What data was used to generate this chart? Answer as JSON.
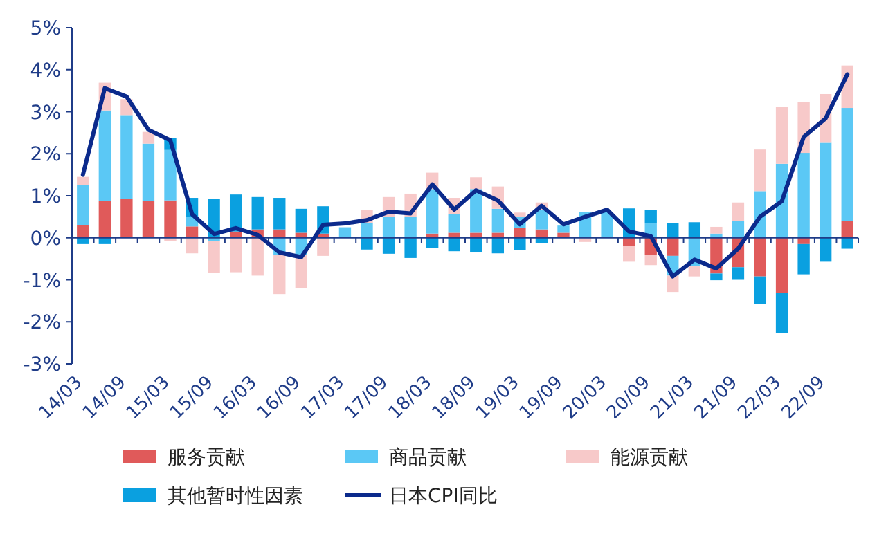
{
  "chart_data": {
    "type": "bar",
    "stacked": true,
    "legend": "bottom",
    "ref_lines": [
      {
        "axis": "y",
        "value": 0,
        "color": "#1f3c88"
      }
    ],
    "categories": [
      "14/03",
      null,
      "14/09",
      null,
      "15/03",
      null,
      "15/09",
      null,
      "16/03",
      null,
      "16/09",
      null,
      "17/03",
      null,
      "17/09",
      null,
      "18/03",
      null,
      "18/09",
      null,
      "19/03",
      null,
      "19/09",
      null,
      "20/03",
      null,
      "20/09",
      null,
      "21/03",
      null,
      "21/09",
      null,
      "22/03",
      null,
      "22/09",
      null
    ],
    "ylim": [
      -3,
      5
    ],
    "yticks": [
      {
        "value": -3,
        "label": "-3%"
      },
      {
        "value": -2,
        "label": "-2%"
      },
      {
        "value": -1,
        "label": "-1%"
      },
      {
        "value": 0,
        "label": "0%"
      },
      {
        "value": 1,
        "label": "1%"
      },
      {
        "value": 2,
        "label": "2%"
      },
      {
        "value": 3,
        "label": "3%"
      },
      {
        "value": 4,
        "label": "4%"
      },
      {
        "value": 5,
        "label": "5%"
      }
    ],
    "series": [
      {
        "name": "服务贡献",
        "color": "#e05a5a",
        "values": [
          0.3,
          0.87,
          0.92,
          0.87,
          0.89,
          0.27,
          0,
          0.15,
          0.2,
          0.2,
          0.12,
          0.1,
          null,
          0,
          0,
          0,
          0.1,
          0.12,
          0.12,
          0.12,
          0.23,
          0.2,
          0.12,
          0,
          0,
          -0.19,
          -0.4,
          -0.43,
          0,
          -0.85,
          -0.7,
          -0.92,
          -1.31,
          -0.15,
          0,
          0.4
        ]
      },
      {
        "name": "商品贡献",
        "color": "#5bc8f5",
        "values": [
          0.95,
          2.16,
          2.0,
          1.37,
          1.2,
          0.22,
          -0.08,
          0,
          null,
          -0.4,
          -0.4,
          0,
          0.25,
          0.35,
          0.5,
          0.5,
          1.06,
          0.44,
          1.04,
          0.57,
          0.27,
          0.47,
          0.17,
          0.62,
          0.62,
          0,
          0.34,
          -0.47,
          -0.68,
          0.1,
          0.4,
          1.11,
          1.76,
          2.02,
          2.26,
          2.69
        ]
      },
      {
        "name": "能源贡献",
        "color": "#f7c9c9",
        "values": [
          0.2,
          0.66,
          0.38,
          0.28,
          -0.07,
          -0.37,
          -0.76,
          -0.82,
          -0.9,
          -0.94,
          -0.8,
          -0.43,
          0,
          0.32,
          0.47,
          0.55,
          0.39,
          0.39,
          0.28,
          0.53,
          0.1,
          0.17,
          0,
          -0.1,
          0,
          -0.38,
          -0.25,
          -0.39,
          -0.24,
          0.16,
          0.44,
          0.99,
          1.36,
          1.21,
          1.16,
          1.01
        ]
      },
      {
        "name": "其他暂时性因素",
        "color": "#0aa0e0",
        "values": [
          -0.15,
          -0.15,
          0,
          0,
          0.28,
          0.46,
          0.93,
          0.88,
          0.77,
          0.75,
          0.57,
          0.65,
          0,
          -0.28,
          -0.38,
          -0.48,
          -0.25,
          -0.32,
          -0.35,
          -0.37,
          -0.3,
          -0.13,
          0,
          0,
          0,
          0.7,
          0.33,
          0.35,
          0.37,
          -0.16,
          -0.3,
          -0.66,
          -0.95,
          -0.72,
          -0.57,
          -0.26
        ]
      },
      {
        "name": "日本CPI同比",
        "type": "line",
        "color": "#0b2a8c",
        "values": [
          1.5,
          3.56,
          3.36,
          2.57,
          2.32,
          0.56,
          0.09,
          0.23,
          0.07,
          -0.35,
          -0.46,
          0.31,
          0.34,
          0.42,
          0.62,
          0.58,
          1.27,
          0.67,
          1.13,
          0.89,
          0.32,
          0.76,
          0.32,
          0.5,
          0.67,
          0.15,
          0.04,
          -0.92,
          -0.52,
          -0.73,
          -0.26,
          0.5,
          0.87,
          2.4,
          2.84,
          3.89
        ]
      }
    ]
  }
}
